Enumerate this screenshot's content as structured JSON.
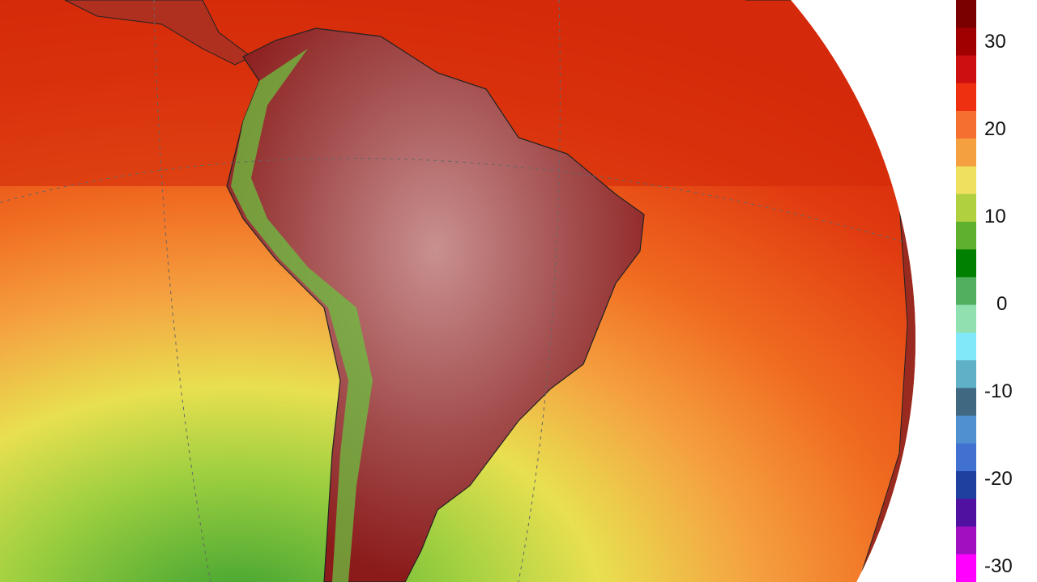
{
  "map": {
    "type": "orthographic temperature map",
    "region": "South America",
    "colors": {
      "land_hot": "#8b1a1a",
      "land_pale": "#c99090",
      "ocean_hot": "#d42a0a",
      "ocean_warm": "#f06a20",
      "ocean_mild": "#e8e050",
      "ocean_cool": "#3aa030",
      "andes": "#6cc040"
    }
  },
  "colorbar": {
    "ticks": [
      "30",
      "20",
      "10",
      "0",
      "-10",
      "-20",
      "-30"
    ],
    "tick_values": [
      30,
      20,
      10,
      0,
      -10,
      -20,
      -30
    ],
    "range": [
      -33,
      37
    ],
    "stops": [
      "#7a0000",
      "#a00000",
      "#cc1010",
      "#ee3010",
      "#f57030",
      "#f5a040",
      "#f0e060",
      "#b0d040",
      "#60b030",
      "#008000",
      "#50b060",
      "#90e0b0",
      "#80e8f8",
      "#60b0c8",
      "#406880",
      "#5090d0",
      "#4070d0",
      "#2040a0",
      "#5010a0",
      "#a010c0",
      "#ff00ff"
    ]
  }
}
